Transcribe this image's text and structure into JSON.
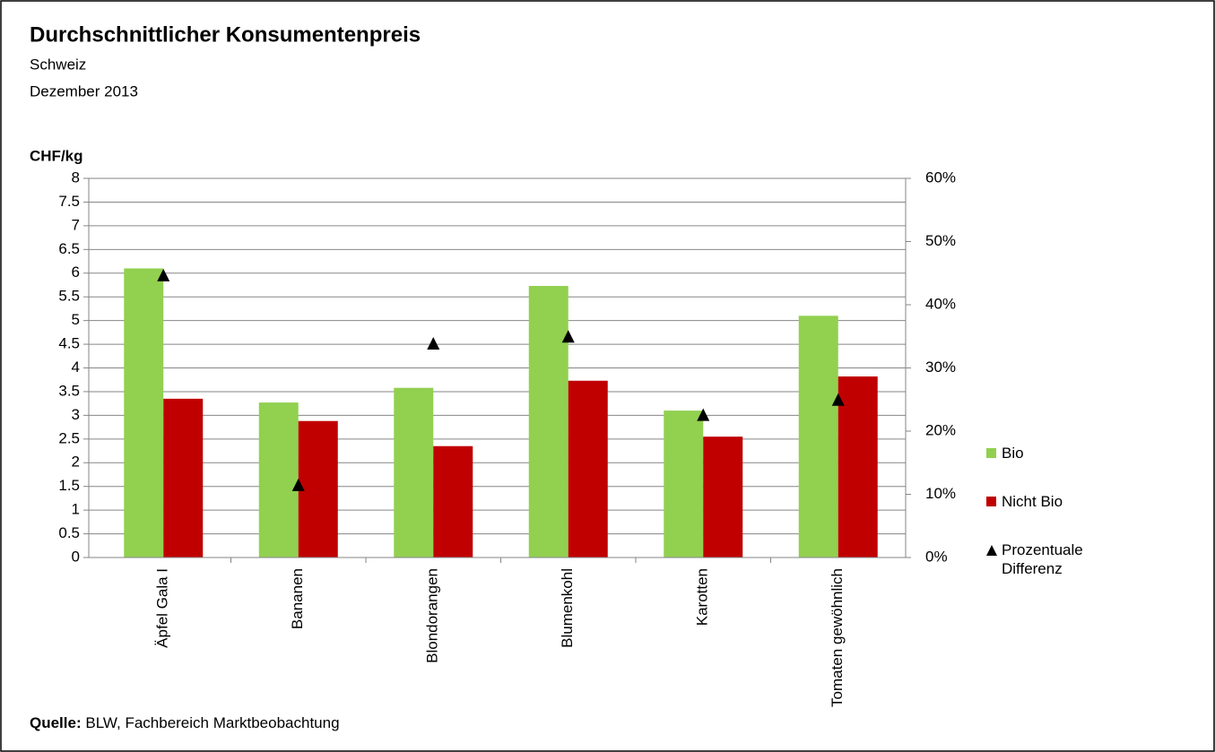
{
  "chart_data": {
    "type": "bar",
    "title": "Durchschnittlicher Konsumentenpreis",
    "subtitle": [
      "Schweiz",
      "Dezember 2013"
    ],
    "y_axis_label": "CHF/kg",
    "source_label": "Quelle:",
    "source": "BLW, Fachbereich  Marktbeobachtung",
    "categories": [
      "Äpfel Gala I",
      "Bananen",
      "Blondorangen",
      "Blumenkohl",
      "Karotten",
      "Tomaten gewöhnlich"
    ],
    "series": [
      {
        "name": "Bio",
        "color": "#92d050",
        "values": [
          6.1,
          3.27,
          3.58,
          5.73,
          3.1,
          5.1
        ]
      },
      {
        "name": "Nicht Bio",
        "color": "#c00000",
        "values": [
          3.35,
          2.88,
          2.35,
          3.73,
          2.55,
          3.82
        ]
      },
      {
        "name": "Prozentuale Differenz",
        "color": "#000000",
        "marker": "triangle",
        "axis": "y2",
        "values": [
          44.7,
          11.5,
          33.9,
          35.0,
          22.6,
          25.0
        ]
      }
    ],
    "ylim": [
      0,
      8
    ],
    "yticks": [
      0,
      0.5,
      1,
      1.5,
      2,
      2.5,
      3,
      3.5,
      4,
      4.5,
      5,
      5.5,
      6,
      6.5,
      7,
      7.5,
      8
    ],
    "y2lim": [
      0,
      60
    ],
    "y2ticks": [
      {
        "value": 0,
        "label": "0%"
      },
      {
        "value": 10,
        "label": "10%"
      },
      {
        "value": 20,
        "label": "20%"
      },
      {
        "value": 30,
        "label": "30%"
      },
      {
        "value": 40,
        "label": "40%"
      },
      {
        "value": 50,
        "label": "50%"
      },
      {
        "value": 60,
        "label": "60%"
      }
    ],
    "grid": true,
    "legend": "right"
  }
}
